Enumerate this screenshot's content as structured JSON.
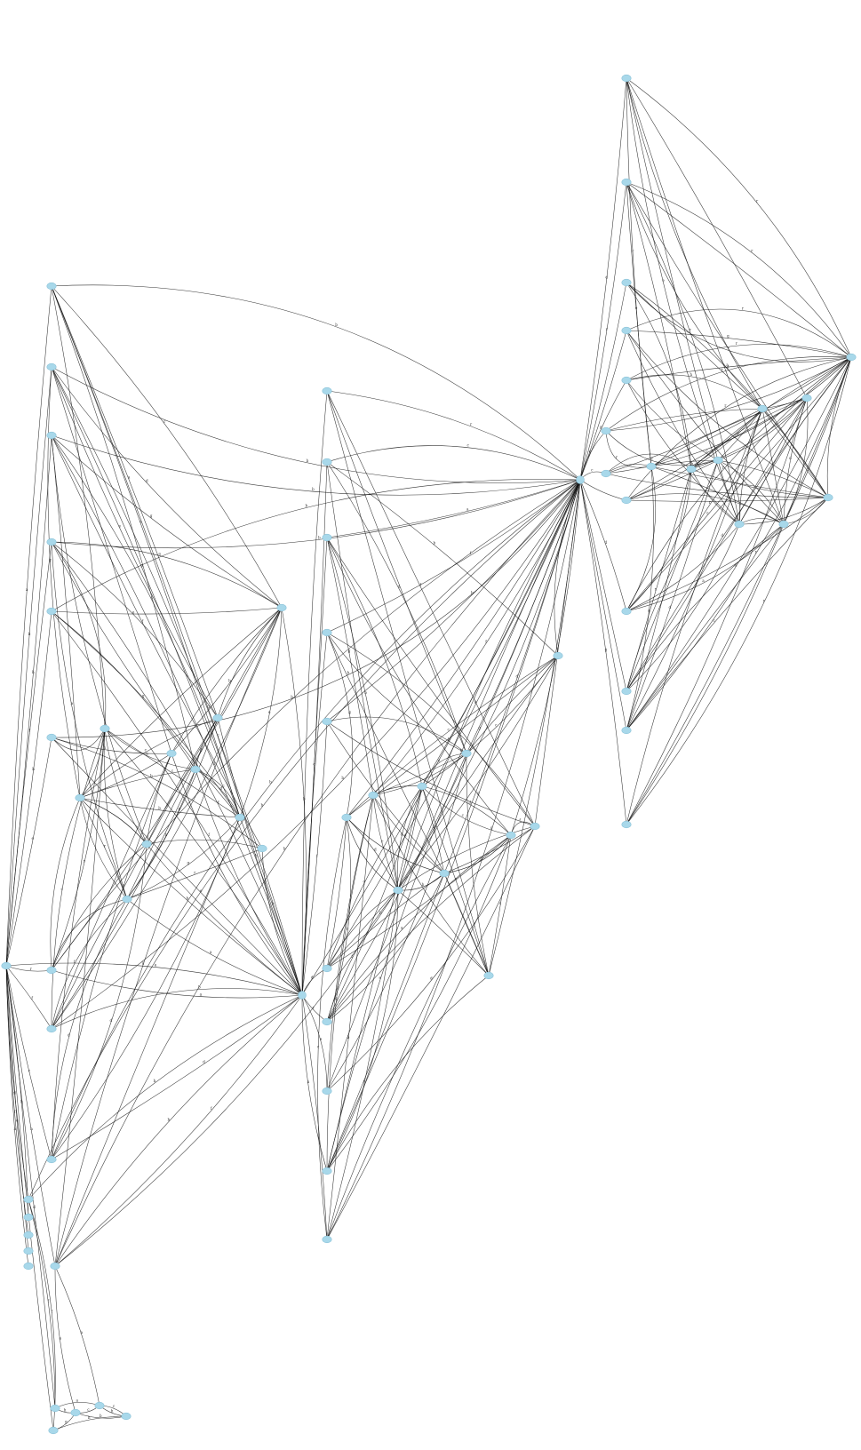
{
  "footer_text": "",
  "colors": {
    "node_fill": "#a8d8ea",
    "edge": "#111111",
    "background": "#ffffff"
  },
  "edge_labels": [
    "c",
    "b",
    "r",
    "d",
    "h",
    "e",
    "f",
    "g",
    "a"
  ],
  "nodes_note_hidden": false
}
